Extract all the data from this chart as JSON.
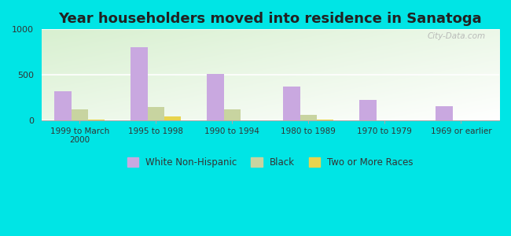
{
  "title": "Year householders moved into residence in Sanatoga",
  "categories": [
    "1999 to March\n2000",
    "1995 to 1998",
    "1990 to 1994",
    "1980 to 1989",
    "1970 to 1979",
    "1969 or earlier"
  ],
  "white_non_hispanic": [
    320,
    800,
    510,
    370,
    220,
    150
  ],
  "black": [
    115,
    145,
    115,
    55,
    0,
    0
  ],
  "two_or_more_races": [
    10,
    40,
    0,
    10,
    0,
    0
  ],
  "white_color": "#c9a8e0",
  "black_color": "#c8d4a0",
  "two_races_color": "#e8d44d",
  "ylim": [
    0,
    1000
  ],
  "yticks": [
    0,
    500,
    1000
  ],
  "outer_background": "#00e5e5",
  "watermark": "City-Data.com",
  "bar_width": 0.22,
  "title_fontsize": 13
}
